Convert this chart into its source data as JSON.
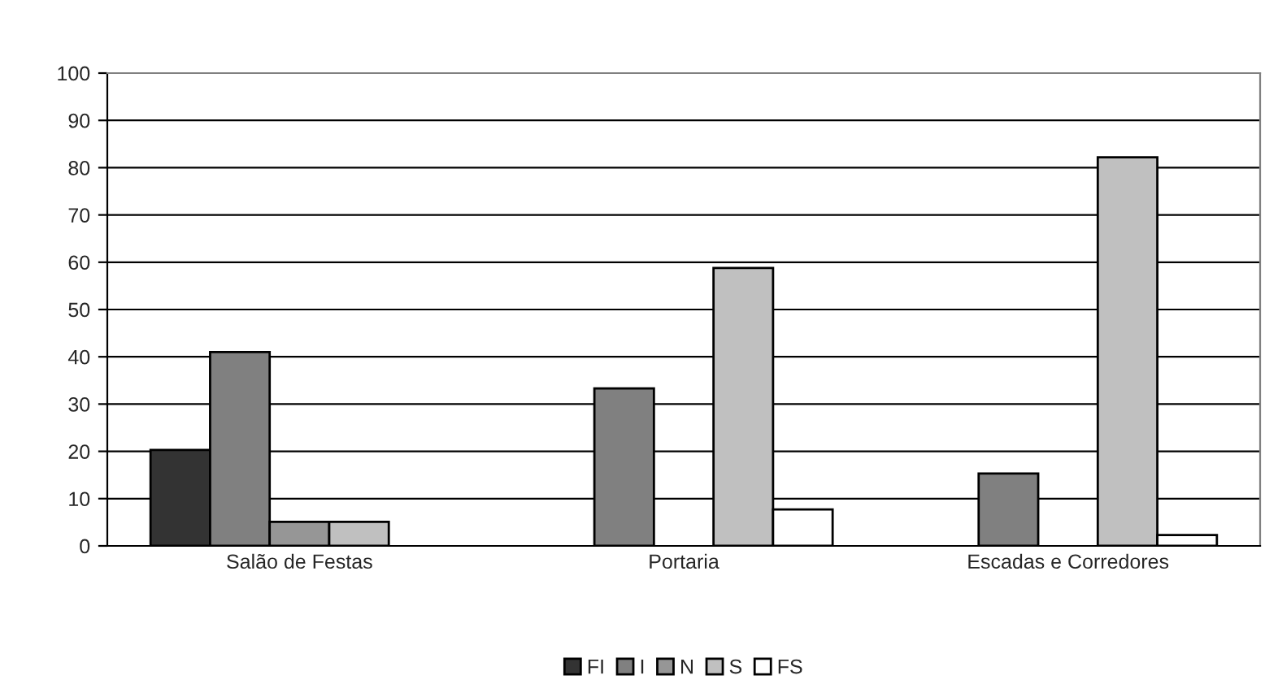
{
  "chart_data": {
    "type": "bar",
    "categories": [
      "Salão de Festas",
      "Portaria",
      "Escadas e Corredores"
    ],
    "series": [
      {
        "name": "FI",
        "color": "#333333",
        "values": [
          20.3,
          null,
          null
        ]
      },
      {
        "name": "I",
        "color": "#808080",
        "values": [
          41,
          33.3,
          15.3
        ]
      },
      {
        "name": "N",
        "color": "#969696",
        "values": [
          5.1,
          null,
          null
        ]
      },
      {
        "name": "S",
        "color": "#c0c0c0",
        "values": [
          5.1,
          58.8,
          82.2
        ]
      },
      {
        "name": "FS",
        "color": "#ffffff",
        "values": [
          null,
          7.7,
          2.3
        ]
      }
    ],
    "ylim": [
      0,
      100
    ],
    "yticks": [
      0,
      10,
      20,
      30,
      40,
      50,
      60,
      70,
      80,
      90,
      100
    ],
    "grid": "y",
    "legend": "bottom"
  }
}
